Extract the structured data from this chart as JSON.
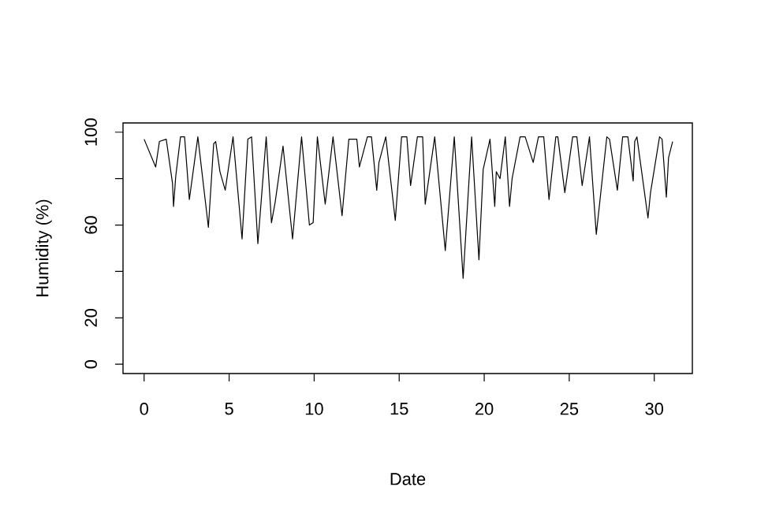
{
  "chart_data": {
    "type": "line",
    "xlabel": "Date",
    "ylabel": "Humidity (%)",
    "xlim": [
      -1.24,
      32.24
    ],
    "ylim": [
      -4,
      104
    ],
    "xticks": [
      0,
      5,
      10,
      15,
      20,
      25,
      30
    ],
    "yticks": [
      0,
      20,
      {
        "value": 40,
        "label": null
      },
      60,
      {
        "value": 80,
        "label": null
      },
      100
    ],
    "grid": false,
    "marker": "none",
    "line_style": "solid",
    "series": [
      {
        "color": "#000000",
        "x": [
          0,
          0.68,
          0.9,
          1.3,
          1.67,
          1.73,
          1.86,
          2.14,
          2.38,
          2.66,
          3.16,
          3.78,
          4.09,
          4.21,
          4.46,
          4.77,
          5.23,
          5.76,
          6.1,
          6.32,
          6.69,
          7.18,
          7.49,
          7.71,
          8.17,
          8.73,
          9.26,
          9.72,
          9.94,
          10.19,
          10.65,
          11.11,
          11.64,
          12.04,
          12.51,
          12.66,
          13.13,
          13.37,
          13.68,
          13.81,
          14.21,
          14.77,
          15.14,
          15.45,
          15.67,
          16.07,
          16.38,
          16.53,
          17.09,
          17.71,
          18.24,
          18.76,
          19.26,
          19.69,
          19.94,
          20.34,
          20.62,
          20.71,
          20.93,
          21.24,
          21.49,
          21.64,
          22.11,
          22.41,
          22.88,
          23.19,
          23.5,
          23.81,
          24.21,
          24.33,
          24.74,
          25.2,
          25.45,
          25.76,
          26.19,
          26.59,
          27.21,
          27.37,
          27.83,
          28.14,
          28.45,
          28.76,
          28.85,
          28.98,
          29.63,
          29.78,
          30.31,
          30.46,
          30.71,
          30.84,
          31.08
        ],
        "values": [
          97,
          85,
          96,
          97,
          78,
          68,
          81,
          98,
          98,
          71,
          98,
          59,
          95,
          96,
          83,
          75,
          98,
          54,
          97,
          98,
          52,
          98,
          61,
          70,
          94,
          54,
          98,
          60,
          61,
          98,
          69,
          98,
          64,
          97,
          97,
          85,
          98,
          98,
          75,
          87,
          98,
          62,
          98,
          98,
          77,
          98,
          98,
          69,
          98,
          49,
          98,
          37,
          98,
          45,
          84,
          97,
          68,
          83,
          80,
          98,
          68,
          80,
          98,
          98,
          87,
          98,
          98,
          71,
          98,
          98,
          74,
          98,
          98,
          77,
          98,
          56,
          98,
          97,
          75,
          98,
          98,
          79,
          96,
          98,
          63,
          74,
          98,
          97,
          72,
          89,
          96
        ]
      }
    ]
  }
}
